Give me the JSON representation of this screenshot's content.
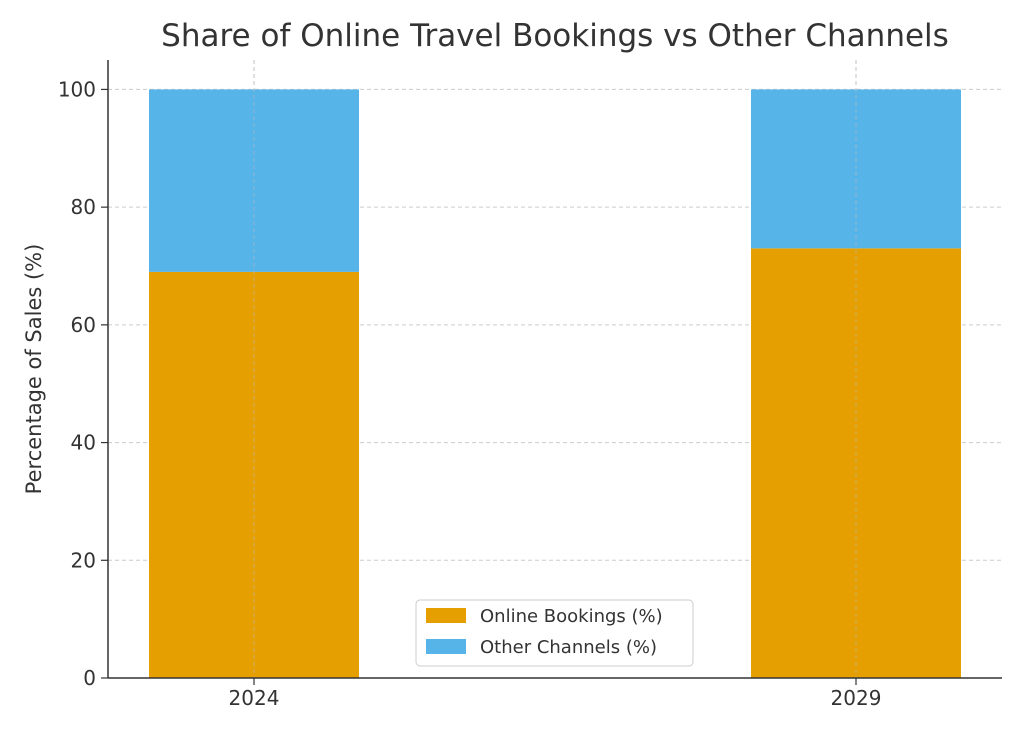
{
  "chart_data": {
    "type": "bar",
    "stacked": true,
    "title": "Share of Online Travel Bookings vs Other Channels",
    "xlabel": "",
    "ylabel": "Percentage of Sales (%)",
    "categories": [
      "2024",
      "2029"
    ],
    "ylim": [
      0,
      105
    ],
    "yticks": [
      0,
      20,
      40,
      60,
      80,
      100
    ],
    "grid": true,
    "legend_position": "bottom-center",
    "series": [
      {
        "name": "Online Bookings (%)",
        "values": [
          69,
          73
        ],
        "color": "#E69F00"
      },
      {
        "name": "Other Channels (%)",
        "values": [
          31,
          27
        ],
        "color": "#56B4E9"
      }
    ]
  }
}
